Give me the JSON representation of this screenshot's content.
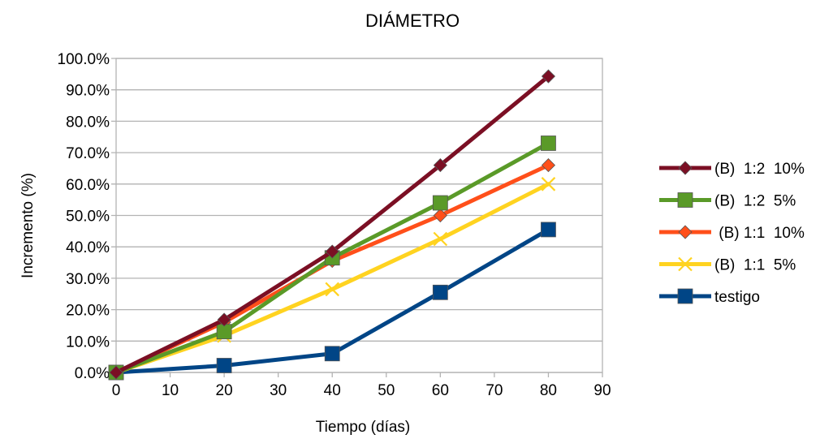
{
  "chart_data": {
    "type": "line",
    "title": "DIÁMETRO",
    "xlabel": "Tiempo (días)",
    "ylabel": "Incremento (%)",
    "xlim": [
      0,
      90
    ],
    "ylim": [
      0,
      100
    ],
    "x_ticks": [
      "0",
      "10",
      "20",
      "30",
      "40",
      "50",
      "60",
      "70",
      "80",
      "90"
    ],
    "y_ticks": [
      "0.0%",
      "10.0%",
      "20.0%",
      "30.0%",
      "40.0%",
      "50.0%",
      "60.0%",
      "70.0%",
      "80.0%",
      "90.0%",
      "100.0%"
    ],
    "grid": "horizontal",
    "legend_position": "right",
    "series": [
      {
        "name": "(B)  1:2  10%",
        "color": "#7b0f24",
        "marker": "diamond",
        "points": [
          [
            0,
            0
          ],
          [
            20,
            16.8
          ],
          [
            40,
            38.5
          ],
          [
            60,
            66
          ],
          [
            80,
            94.3
          ]
        ]
      },
      {
        "name": "(B)  1:2  5%",
        "color": "#5a9a28",
        "marker": "square",
        "points": [
          [
            0,
            0
          ],
          [
            20,
            13
          ],
          [
            40,
            36.5
          ],
          [
            60,
            54
          ],
          [
            80,
            73
          ]
        ]
      },
      {
        "name": " (B) 1:1  10%",
        "color": "#ff4f1a",
        "marker": "diamond",
        "points": [
          [
            0,
            0
          ],
          [
            20,
            16
          ],
          [
            40,
            35.5
          ],
          [
            60,
            50
          ],
          [
            80,
            66
          ]
        ]
      },
      {
        "name": "(B)  1:1  5%",
        "color": "#ffd320",
        "marker": "x",
        "points": [
          [
            0,
            0
          ],
          [
            20,
            11.7
          ],
          [
            40,
            26.5
          ],
          [
            60,
            42.5
          ],
          [
            80,
            60
          ]
        ]
      },
      {
        "name": "testigo",
        "color": "#004586",
        "marker": "square",
        "points": [
          [
            0,
            0
          ],
          [
            20,
            2.2
          ],
          [
            40,
            6
          ],
          [
            60,
            25.5
          ],
          [
            80,
            45.5
          ]
        ]
      }
    ]
  }
}
